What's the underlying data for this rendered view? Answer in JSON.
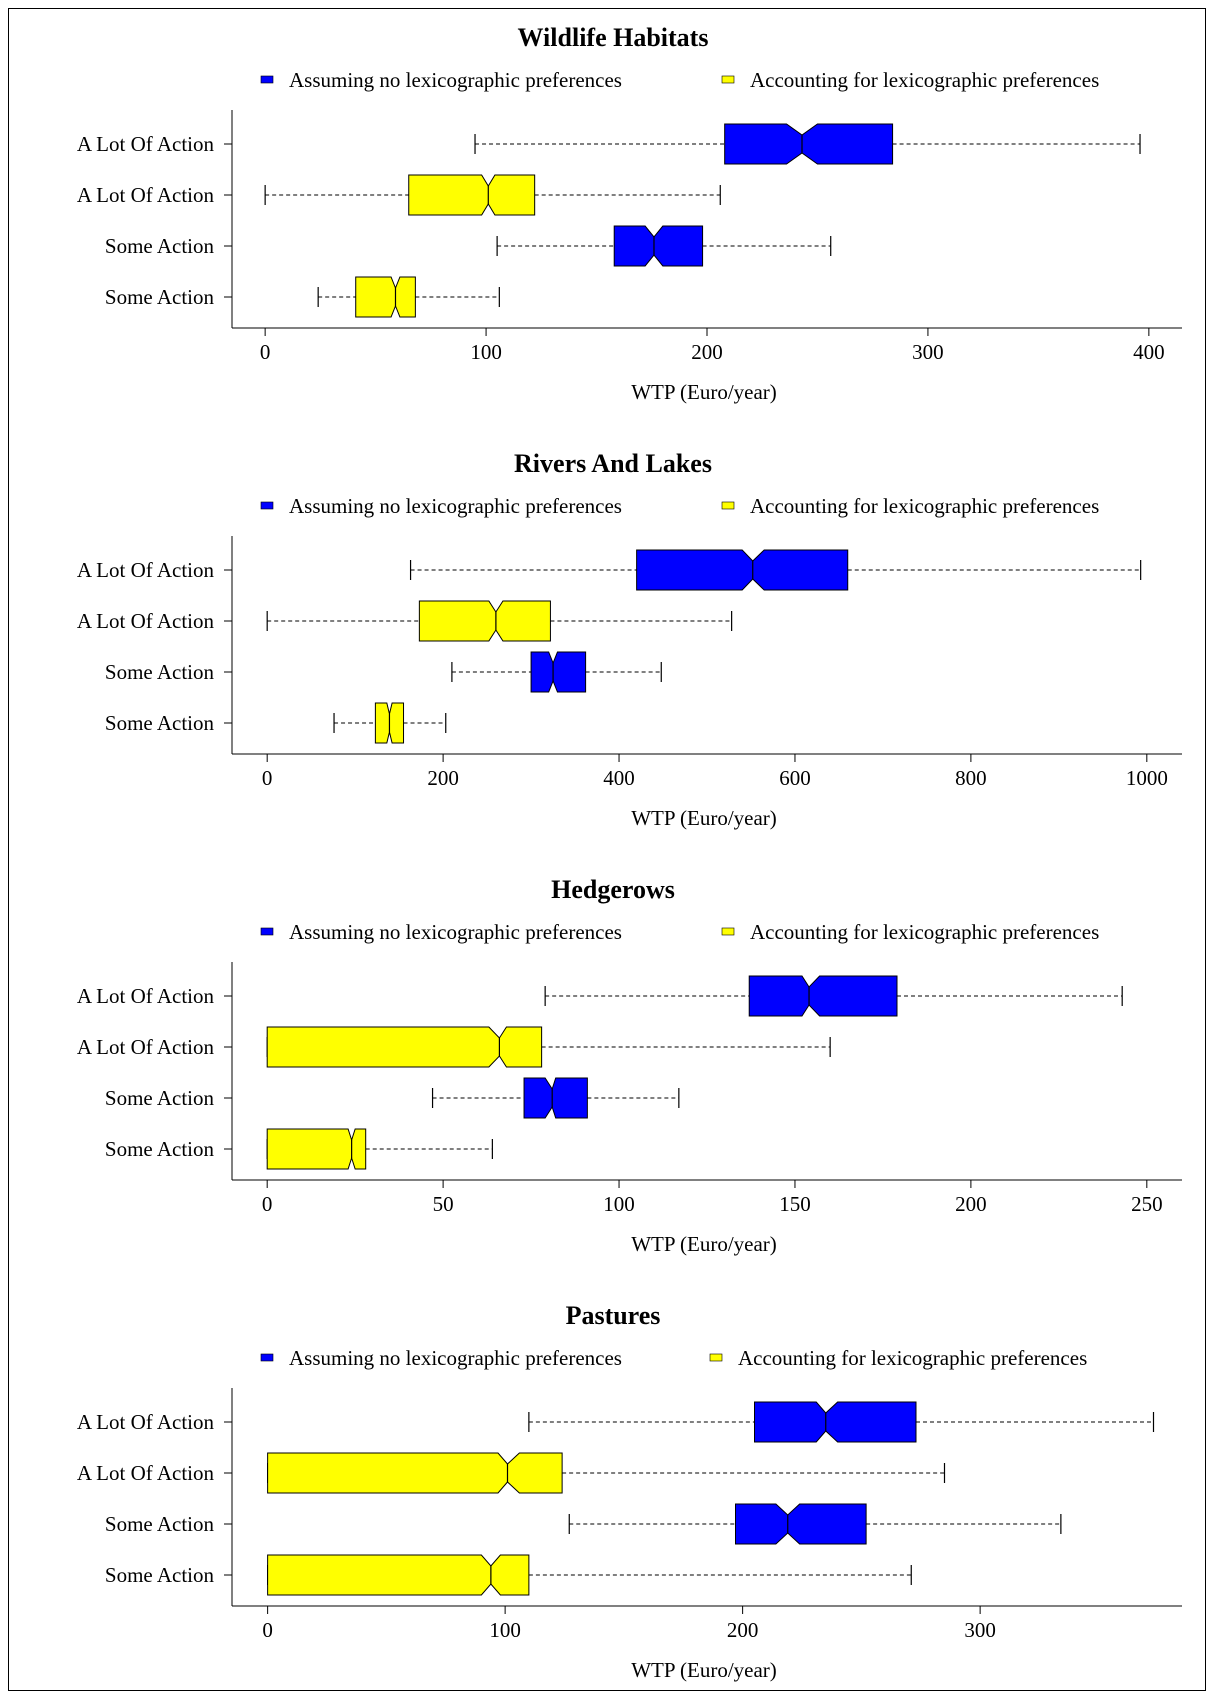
{
  "chart_data": [
    {
      "type": "boxplot",
      "title": "Wildlife Habitats",
      "xlabel": "WTP (Euro/year)",
      "xlim": [
        -15,
        415
      ],
      "xticks": [
        0,
        100,
        200,
        300,
        400
      ],
      "legend": [
        {
          "name": "Assuming no lexicographic preferences",
          "color": "#0000ff"
        },
        {
          "name": "Accounting for lexicographic preferences",
          "color": "#ffff00"
        }
      ],
      "categories": [
        "A Lot Of Action",
        "A Lot Of Action",
        "Some Action",
        "Some Action"
      ],
      "boxes": [
        {
          "label": "A Lot Of Action",
          "color": "#0000ff",
          "min": 95,
          "q1": 208,
          "median": 243,
          "q3": 284,
          "max": 396,
          "notch": [
            236,
            250
          ]
        },
        {
          "label": "A Lot Of Action",
          "color": "#ffff00",
          "min": 0,
          "q1": 65,
          "median": 101,
          "q3": 122,
          "max": 206,
          "notch": [
            98,
            104
          ]
        },
        {
          "label": "Some Action",
          "color": "#0000ff",
          "min": 105,
          "q1": 158,
          "median": 176,
          "q3": 198,
          "max": 256,
          "notch": [
            172,
            180
          ]
        },
        {
          "label": "Some Action",
          "color": "#ffff00",
          "min": 24,
          "q1": 41,
          "median": 59,
          "q3": 68,
          "max": 106,
          "notch": [
            57,
            61
          ]
        }
      ]
    },
    {
      "type": "boxplot",
      "title": "Rivers And Lakes",
      "xlabel": "WTP (Euro/year)",
      "xlim": [
        -40,
        1040
      ],
      "xticks": [
        0,
        200,
        400,
        600,
        800,
        1000
      ],
      "legend": [
        {
          "name": "Assuming no lexicographic preferences",
          "color": "#0000ff"
        },
        {
          "name": "Accounting for lexicographic preferences",
          "color": "#ffff00"
        }
      ],
      "categories": [
        "A Lot Of Action",
        "A Lot Of Action",
        "Some Action",
        "Some Action"
      ],
      "boxes": [
        {
          "label": "A Lot Of Action",
          "color": "#0000ff",
          "min": 163,
          "q1": 420,
          "median": 552,
          "q3": 660,
          "max": 993,
          "notch": [
            540,
            565
          ]
        },
        {
          "label": "A Lot Of Action",
          "color": "#ffff00",
          "min": 0,
          "q1": 173,
          "median": 260,
          "q3": 322,
          "max": 528,
          "notch": [
            252,
            268
          ]
        },
        {
          "label": "Some Action",
          "color": "#0000ff",
          "min": 210,
          "q1": 300,
          "median": 325,
          "q3": 362,
          "max": 448,
          "notch": [
            320,
            330
          ]
        },
        {
          "label": "Some Action",
          "color": "#ffff00",
          "min": 76,
          "q1": 123,
          "median": 139,
          "q3": 155,
          "max": 203,
          "notch": [
            136,
            142
          ]
        }
      ]
    },
    {
      "type": "boxplot",
      "title": "Hedgerows",
      "xlabel": "WTP (Euro/year)",
      "xlim": [
        -10,
        260
      ],
      "xticks": [
        0,
        50,
        100,
        150,
        200,
        250
      ],
      "legend": [
        {
          "name": "Assuming no lexicographic preferences",
          "color": "#0000ff"
        },
        {
          "name": "Accounting for lexicographic preferences",
          "color": "#ffff00"
        }
      ],
      "categories": [
        "A Lot Of Action",
        "A Lot Of Action",
        "Some Action",
        "Some Action"
      ],
      "boxes": [
        {
          "label": "A Lot Of Action",
          "color": "#0000ff",
          "min": 79,
          "q1": 137,
          "median": 154,
          "q3": 179,
          "max": 243,
          "notch": [
            152,
            157
          ]
        },
        {
          "label": "A Lot Of Action",
          "color": "#ffff00",
          "min": 0,
          "q1": 0,
          "median": 66,
          "q3": 78,
          "max": 160,
          "notch": [
            63,
            68
          ]
        },
        {
          "label": "Some Action",
          "color": "#0000ff",
          "min": 47,
          "q1": 73,
          "median": 81,
          "q3": 91,
          "max": 117,
          "notch": [
            79,
            82
          ]
        },
        {
          "label": "Some Action",
          "color": "#ffff00",
          "min": 0,
          "q1": 0,
          "median": 24,
          "q3": 28,
          "max": 64,
          "notch": [
            23,
            25
          ]
        }
      ]
    },
    {
      "type": "boxplot",
      "title": "Pastures",
      "xlabel": "WTP (Euro/year)",
      "xlim": [
        -15,
        385
      ],
      "xticks": [
        0,
        100,
        200,
        300
      ],
      "legend": [
        {
          "name": "Assuming no lexicographic preferences",
          "color": "#0000ff"
        },
        {
          "name": "Accounting for lexicographic preferences",
          "color": "#ffff00"
        }
      ],
      "categories": [
        "A Lot Of Action",
        "A Lot Of Action",
        "Some Action",
        "Some Action"
      ],
      "boxes": [
        {
          "label": "A Lot Of Action",
          "color": "#0000ff",
          "min": 110,
          "q1": 205,
          "median": 235,
          "q3": 273,
          "max": 373,
          "notch": [
            231,
            240
          ]
        },
        {
          "label": "A Lot Of Action",
          "color": "#ffff00",
          "min": 0,
          "q1": 0,
          "median": 101,
          "q3": 124,
          "max": 285,
          "notch": [
            97,
            106
          ]
        },
        {
          "label": "Some Action",
          "color": "#0000ff",
          "min": 127,
          "q1": 197,
          "median": 219,
          "q3": 252,
          "max": 334,
          "notch": [
            214,
            224
          ]
        },
        {
          "label": "Some Action",
          "color": "#ffff00",
          "min": 0,
          "q1": 0,
          "median": 94,
          "q3": 110,
          "max": 271,
          "notch": [
            90,
            98
          ]
        }
      ]
    }
  ]
}
